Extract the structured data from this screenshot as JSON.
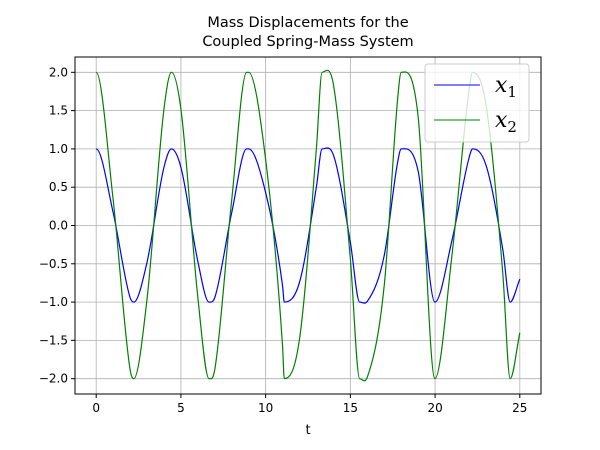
{
  "chart_data": {
    "type": "line",
    "title_lines": [
      "Mass Displacements for the",
      "Coupled Spring-Mass System"
    ],
    "xlabel": "t",
    "ylabel": "",
    "xlim": [
      -1.25,
      26.25
    ],
    "ylim": [
      -2.2,
      2.2
    ],
    "xticks": [
      0,
      5,
      10,
      15,
      20,
      25
    ],
    "yticks": [
      -2.0,
      -1.5,
      -1.0,
      -0.5,
      0.0,
      0.5,
      1.0,
      1.5,
      2.0
    ],
    "xtick_labels": [
      "0",
      "5",
      "10",
      "15",
      "20",
      "25"
    ],
    "ytick_labels": [
      "−2.0",
      "−1.5",
      "−1.0",
      "−0.5",
      "0.0",
      "0.5",
      "1.0",
      "1.5",
      "2.0"
    ],
    "grid": true,
    "legend_position": "upper right",
    "series": [
      {
        "name_base": "x",
        "name_sub": "1",
        "color": "#0000ff",
        "x": [
          0,
          1,
          2,
          2.22,
          3,
          4,
          4.44,
          5,
          6,
          6.66,
          7,
          8,
          8.88,
          9,
          10,
          11,
          11.1,
          12,
          13,
          13.33,
          14,
          15,
          15.55,
          16,
          17,
          17.77,
          18,
          19,
          19.99,
          21,
          22,
          22.21,
          23,
          24,
          24.43,
          25
        ],
        "y": [
          1.0,
          0.17,
          -0.94,
          -1.0,
          -0.48,
          0.76,
          1.0,
          0.76,
          -0.47,
          -1.0,
          -0.94,
          0.17,
          1.0,
          1.0,
          0.43,
          -0.79,
          -1.0,
          -0.74,
          0.51,
          1.0,
          0.92,
          -0.22,
          -1.0,
          -0.99,
          -0.39,
          0.8,
          1.0,
          0.71,
          -1.0,
          -0.19,
          0.88,
          1.0,
          0.79,
          -0.32,
          -1.0,
          -0.7
        ]
      },
      {
        "name_base": "x",
        "name_sub": "2",
        "color": "#008000",
        "x": [
          0,
          1,
          2,
          2.22,
          3,
          4,
          4.44,
          5,
          6,
          6.66,
          7,
          8,
          8.88,
          9,
          10,
          11,
          11.1,
          12,
          13,
          13.33,
          14,
          15,
          15.55,
          16,
          17,
          17.77,
          18,
          19,
          19.99,
          21,
          22,
          22.21,
          23,
          24,
          24.43,
          25
        ],
        "y": [
          2.0,
          0.34,
          -1.88,
          -2.0,
          -0.96,
          1.52,
          2.0,
          1.52,
          -0.94,
          -2.0,
          -1.88,
          0.34,
          2.0,
          2.0,
          0.86,
          -1.58,
          -2.0,
          -1.48,
          1.02,
          2.0,
          1.84,
          -0.44,
          -2.0,
          -1.98,
          -0.78,
          1.6,
          2.0,
          1.42,
          -2.0,
          -0.38,
          1.76,
          2.0,
          1.58,
          -0.64,
          -2.0,
          -1.4
        ]
      }
    ]
  }
}
